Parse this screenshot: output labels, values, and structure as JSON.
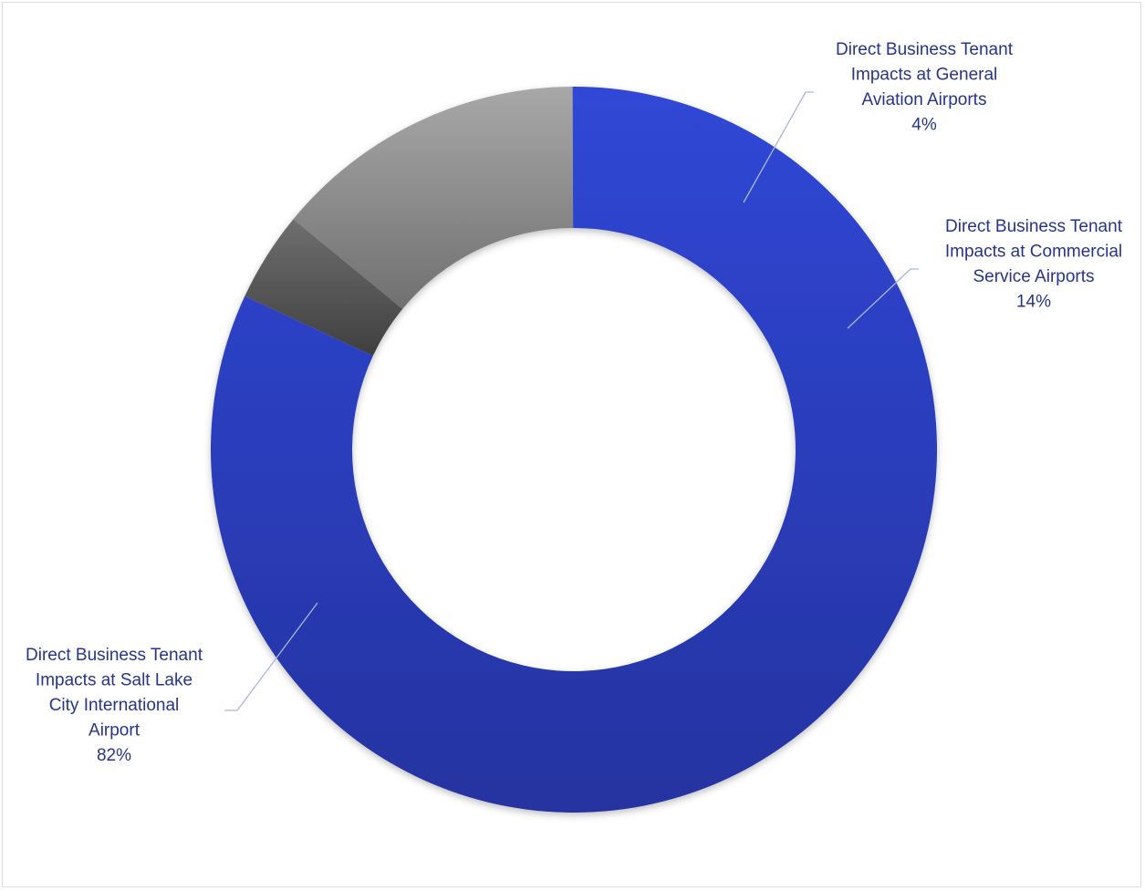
{
  "chart_data": {
    "type": "pie",
    "variant": "doughnut",
    "title": "",
    "slices": [
      {
        "label_lines": [
          "Direct Business Tenant",
          "Impacts at General",
          "Aviation Airports"
        ],
        "percent_label": "4%",
        "value": 4,
        "color": "#555555"
      },
      {
        "label_lines": [
          "Direct Business Tenant",
          "Impacts at Commercial",
          "Service Airports"
        ],
        "percent_label": "14%",
        "value": 14,
        "color": "#8a8a8a"
      },
      {
        "label_lines": [
          "Direct Business Tenant",
          "Impacts at Salt Lake",
          "City International",
          "Airport"
        ],
        "percent_label": "82%",
        "value": 82,
        "color": "#2e44c8"
      }
    ],
    "colors": {
      "label_text": "#27348b",
      "leader_line": "#a9b6d8",
      "frame_border": "#d9dde8"
    }
  }
}
